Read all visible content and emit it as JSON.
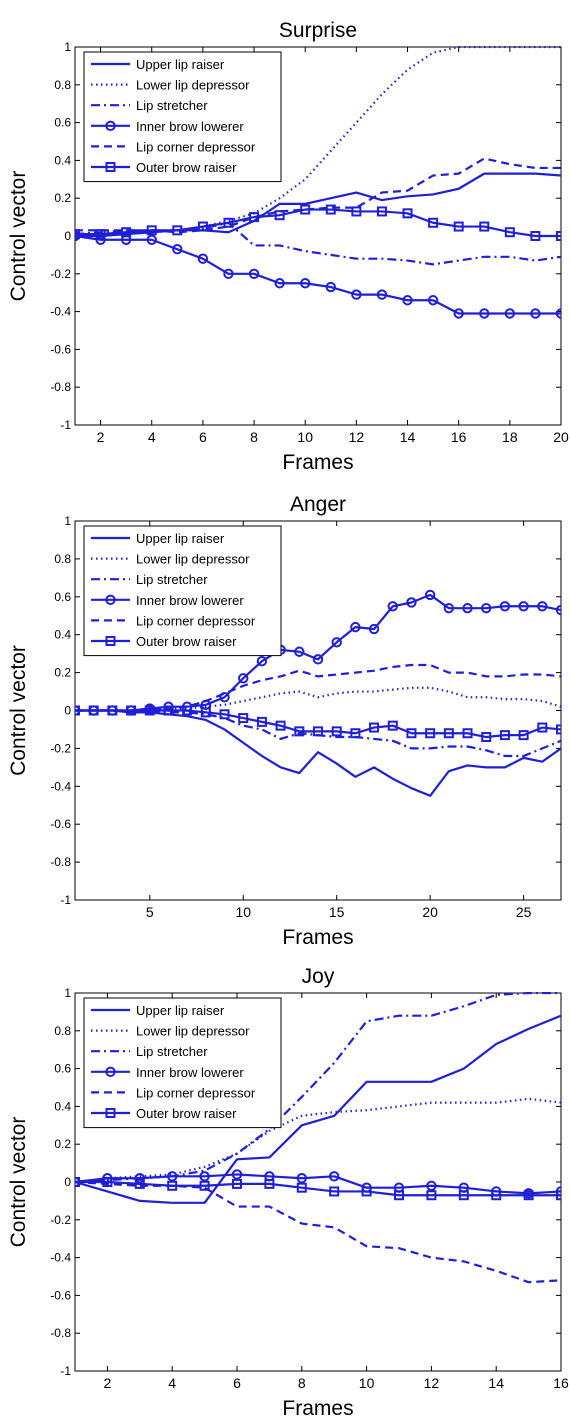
{
  "chart_data": [
    {
      "type": "line",
      "title": "Surprise",
      "xlabel": "Frames",
      "ylabel": "Control vector",
      "xlim": [
        1,
        20
      ],
      "ylim": [
        -1,
        1
      ],
      "xticks": [
        2,
        4,
        6,
        8,
        10,
        12,
        14,
        16,
        18,
        20
      ],
      "yticks": [
        -1,
        -0.8,
        -0.6,
        -0.4,
        -0.2,
        0,
        0.2,
        0.4,
        0.6,
        0.8,
        1
      ],
      "grid": false,
      "legend_position": "top-left",
      "x": [
        1,
        2,
        3,
        4,
        5,
        6,
        7,
        8,
        9,
        10,
        11,
        12,
        13,
        14,
        15,
        16,
        17,
        18,
        19,
        20
      ],
      "series": [
        {
          "name": "Upper lip raiser",
          "style": "solid",
          "values": [
            0,
            0,
            0.01,
            0.02,
            0.03,
            0.03,
            0.02,
            0.08,
            0.17,
            0.17,
            0.2,
            0.23,
            0.19,
            0.21,
            0.22,
            0.25,
            0.33,
            0.33,
            0.33,
            0.32
          ]
        },
        {
          "name": "Lower lip depressor",
          "style": "dotted",
          "values": [
            0,
            0,
            0.01,
            0.02,
            0.03,
            0.05,
            0.08,
            0.12,
            0.2,
            0.3,
            0.45,
            0.6,
            0.75,
            0.88,
            0.97,
            1,
            1,
            1,
            1,
            1
          ]
        },
        {
          "name": "Lip stretcher",
          "style": "dashdot",
          "values": [
            0.01,
            0.02,
            0.03,
            0.03,
            0.03,
            0.04,
            0.07,
            -0.05,
            -0.05,
            -0.08,
            -0.1,
            -0.12,
            -0.12,
            -0.13,
            -0.15,
            -0.13,
            -0.11,
            -0.11,
            -0.13,
            -0.11
          ]
        },
        {
          "name": "Inner brow lowerer",
          "style": "solid-circle",
          "values": [
            0,
            -0.02,
            -0.02,
            -0.02,
            -0.07,
            -0.12,
            -0.2,
            -0.2,
            -0.25,
            -0.25,
            -0.27,
            -0.31,
            -0.31,
            -0.34,
            -0.34,
            -0.41,
            -0.41,
            -0.41,
            -0.41,
            -0.41
          ]
        },
        {
          "name": "Lip corner depressor",
          "style": "dashed",
          "values": [
            0.03,
            0.03,
            0.03,
            0.03,
            0.02,
            0.03,
            0.05,
            0.1,
            0.13,
            0.14,
            0.15,
            0.15,
            0.23,
            0.24,
            0.32,
            0.33,
            0.41,
            0.38,
            0.36,
            0.36
          ]
        },
        {
          "name": "Outer brow raiser",
          "style": "solid-square",
          "values": [
            0.01,
            0.01,
            0.02,
            0.03,
            0.03,
            0.05,
            0.07,
            0.1,
            0.11,
            0.14,
            0.14,
            0.13,
            0.13,
            0.12,
            0.07,
            0.05,
            0.05,
            0.02,
            0,
            0
          ]
        }
      ]
    },
    {
      "type": "line",
      "title": "Anger",
      "xlabel": "Frames",
      "ylabel": "Control vector",
      "xlim": [
        1,
        27
      ],
      "ylim": [
        -1,
        1
      ],
      "xticks": [
        5,
        10,
        15,
        20,
        25
      ],
      "yticks": [
        -1,
        -0.8,
        -0.6,
        -0.4,
        -0.2,
        0,
        0.2,
        0.4,
        0.6,
        0.8,
        1
      ],
      "grid": false,
      "legend_position": "top-left",
      "x": [
        1,
        2,
        3,
        4,
        5,
        6,
        7,
        8,
        9,
        10,
        11,
        12,
        13,
        14,
        15,
        16,
        17,
        18,
        19,
        20,
        21,
        22,
        23,
        24,
        25,
        26,
        27
      ],
      "series": [
        {
          "name": "Upper lip raiser",
          "style": "solid",
          "values": [
            0,
            0,
            0,
            -0.01,
            -0.01,
            -0.02,
            -0.03,
            -0.05,
            -0.1,
            -0.17,
            -0.24,
            -0.3,
            -0.33,
            -0.22,
            -0.28,
            -0.35,
            -0.3,
            -0.36,
            -0.41,
            -0.45,
            -0.32,
            -0.29,
            -0.3,
            -0.3,
            -0.25,
            -0.27,
            -0.2
          ]
        },
        {
          "name": "Lower lip depressor",
          "style": "dotted",
          "values": [
            0,
            0,
            0,
            0,
            0,
            0.01,
            0.01,
            0.02,
            0.03,
            0.05,
            0.07,
            0.09,
            0.1,
            0.07,
            0.09,
            0.1,
            0.1,
            0.11,
            0.12,
            0.12,
            0.1,
            0.07,
            0.07,
            0.06,
            0.06,
            0.05,
            0.02
          ]
        },
        {
          "name": "Lip stretcher",
          "style": "dashdot",
          "values": [
            0,
            0,
            0,
            0,
            0,
            -0.01,
            -0.01,
            -0.02,
            -0.04,
            -0.08,
            -0.1,
            -0.15,
            -0.12,
            -0.13,
            -0.14,
            -0.14,
            -0.15,
            -0.16,
            -0.2,
            -0.2,
            -0.19,
            -0.19,
            -0.21,
            -0.24,
            -0.24,
            -0.2,
            -0.16
          ]
        },
        {
          "name": "Inner brow lowerer",
          "style": "solid-circle",
          "values": [
            0,
            0,
            0,
            0,
            0.01,
            0.02,
            0.02,
            0.03,
            0.07,
            0.17,
            0.26,
            0.32,
            0.31,
            0.27,
            0.36,
            0.44,
            0.43,
            0.55,
            0.57,
            0.61,
            0.54,
            0.54,
            0.54,
            0.55,
            0.55,
            0.55,
            0.53
          ]
        },
        {
          "name": "Lip corner depressor",
          "style": "dashed",
          "values": [
            0,
            0,
            0,
            0,
            0.01,
            0.01,
            0.02,
            0.05,
            0.09,
            0.13,
            0.16,
            0.18,
            0.21,
            0.18,
            0.19,
            0.2,
            0.21,
            0.23,
            0.24,
            0.24,
            0.2,
            0.2,
            0.18,
            0.18,
            0.19,
            0.19,
            0.18
          ]
        },
        {
          "name": "Outer brow raiser",
          "style": "solid-square",
          "values": [
            0,
            0,
            0,
            0,
            0,
            0,
            0,
            -0.01,
            -0.02,
            -0.04,
            -0.06,
            -0.08,
            -0.11,
            -0.11,
            -0.11,
            -0.12,
            -0.09,
            -0.08,
            -0.12,
            -0.12,
            -0.12,
            -0.12,
            -0.14,
            -0.13,
            -0.13,
            -0.09,
            -0.1
          ]
        }
      ]
    },
    {
      "type": "line",
      "title": "Joy",
      "xlabel": "Frames",
      "ylabel": "Control vector",
      "xlim": [
        1,
        16
      ],
      "ylim": [
        -1,
        1
      ],
      "xticks": [
        2,
        4,
        6,
        8,
        10,
        12,
        14,
        16
      ],
      "yticks": [
        -1,
        -0.8,
        -0.6,
        -0.4,
        -0.2,
        0,
        0.2,
        0.4,
        0.6,
        0.8,
        1
      ],
      "grid": false,
      "legend_position": "top-left",
      "x": [
        1,
        2,
        3,
        4,
        5,
        6,
        7,
        8,
        9,
        10,
        11,
        12,
        13,
        14,
        15,
        16
      ],
      "series": [
        {
          "name": "Upper lip raiser",
          "style": "solid",
          "values": [
            0,
            -0.05,
            -0.1,
            -0.11,
            -0.11,
            0.12,
            0.13,
            0.3,
            0.35,
            0.53,
            0.53,
            0.53,
            0.6,
            0.73,
            0.81,
            0.88
          ]
        },
        {
          "name": "Lower lip depressor",
          "style": "dotted",
          "values": [
            0,
            0.02,
            0.03,
            0.04,
            0.08,
            0.15,
            0.27,
            0.35,
            0.37,
            0.38,
            0.4,
            0.42,
            0.42,
            0.42,
            0.44,
            0.42
          ]
        },
        {
          "name": "Lip stretcher",
          "style": "dashdot",
          "values": [
            0,
            0.01,
            0.02,
            0.03,
            0.06,
            0.15,
            0.28,
            0.45,
            0.63,
            0.85,
            0.88,
            0.88,
            0.93,
            0.99,
            1,
            1
          ]
        },
        {
          "name": "Inner brow lowerer",
          "style": "solid-circle",
          "values": [
            0,
            0.02,
            0.02,
            0.03,
            0.03,
            0.04,
            0.03,
            0.02,
            0.03,
            -0.03,
            -0.03,
            -0.02,
            -0.03,
            -0.05,
            -0.06,
            -0.05
          ]
        },
        {
          "name": "Lip corner depressor",
          "style": "dashed",
          "values": [
            0,
            -0.01,
            -0.02,
            -0.02,
            -0.03,
            -0.13,
            -0.13,
            -0.22,
            -0.24,
            -0.34,
            -0.35,
            -0.4,
            -0.42,
            -0.47,
            -0.53,
            -0.52
          ]
        },
        {
          "name": "Outer brow raiser",
          "style": "solid-square",
          "values": [
            0,
            0,
            -0.01,
            -0.02,
            -0.02,
            -0.01,
            -0.01,
            -0.03,
            -0.05,
            -0.05,
            -0.07,
            -0.07,
            -0.07,
            -0.07,
            -0.07,
            -0.07
          ]
        }
      ]
    }
  ],
  "colors": {
    "series": "#1f1fd6",
    "axes": "#000000",
    "background": "#ffffff"
  }
}
